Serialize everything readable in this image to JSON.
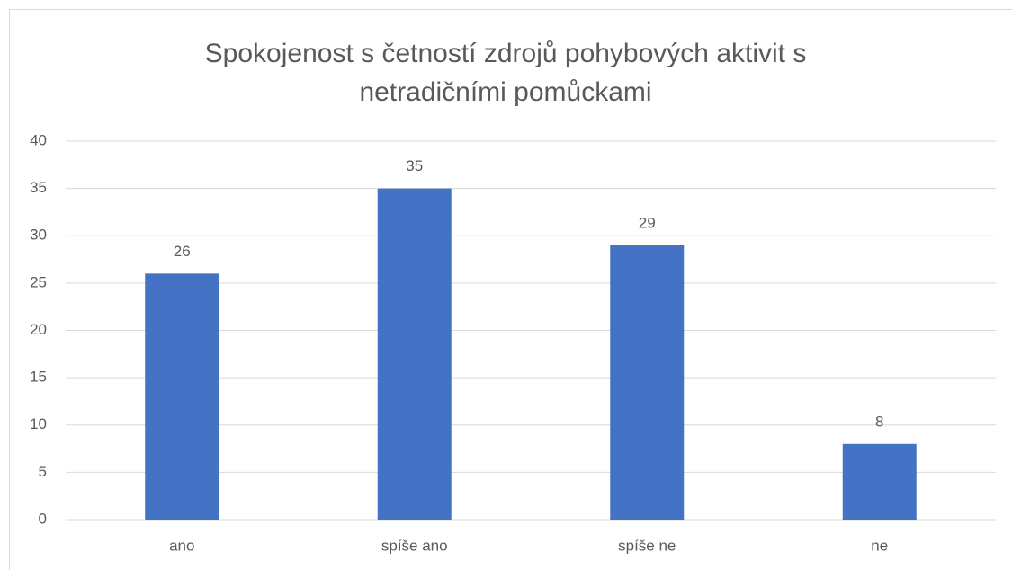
{
  "chart_data": {
    "type": "bar",
    "title": "Spokojenost s četností zdrojů pohybových aktivit s netradičními pomůckami",
    "categories": [
      "ano",
      "spíše ano",
      "spíše ne",
      "ne"
    ],
    "values": [
      26,
      35,
      29,
      8
    ],
    "color": "#4472c4",
    "ylim": [
      0,
      40
    ],
    "yticks": [
      0,
      5,
      10,
      15,
      20,
      25,
      30,
      35,
      40
    ],
    "grid": true,
    "data_labels": true
  }
}
